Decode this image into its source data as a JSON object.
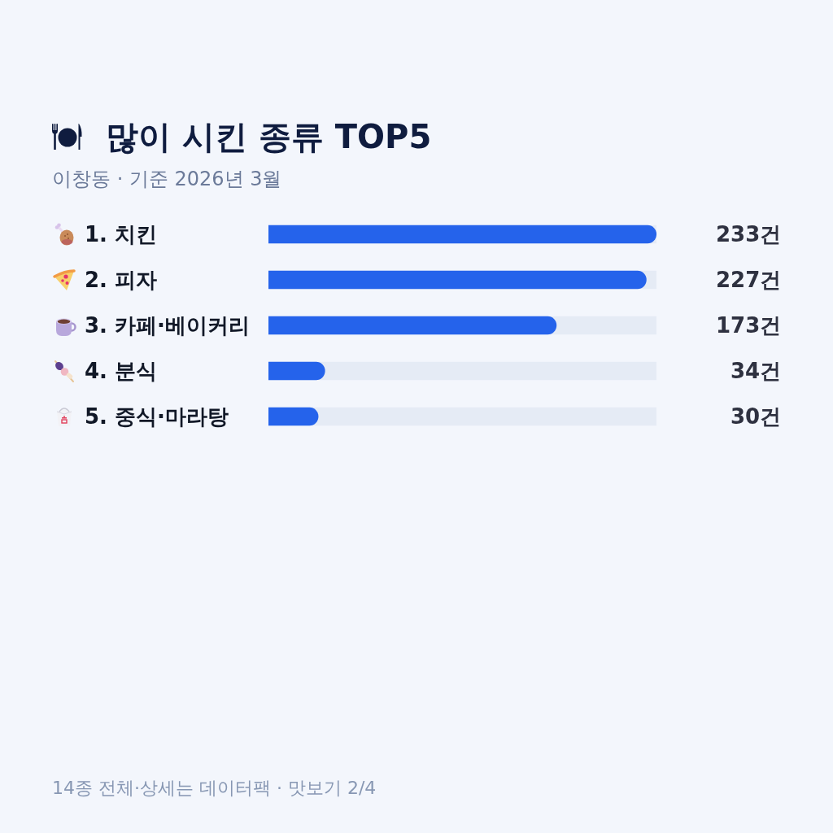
{
  "chart_data": {
    "type": "bar",
    "orientation": "horizontal",
    "title": "많이 시킨 종류 TOP5",
    "subtitle": "이창동 · 기준 2026년 3월",
    "categories": [
      "1. 치킨",
      "2. 피자",
      "3. 카페·베이커리",
      "4. 분식",
      "5. 중식·마라탕"
    ],
    "values": [
      233,
      227,
      173,
      34,
      30
    ],
    "color": "#2563eb",
    "value_labels": [
      "233건",
      "227건",
      "173건",
      "34건",
      "30건"
    ],
    "xlim": [
      0,
      233
    ],
    "tick_labels": "y",
    "annotations": [
      "14종 전체·상세는 데이터팩 · 맛보기 2/4"
    ]
  }
}
